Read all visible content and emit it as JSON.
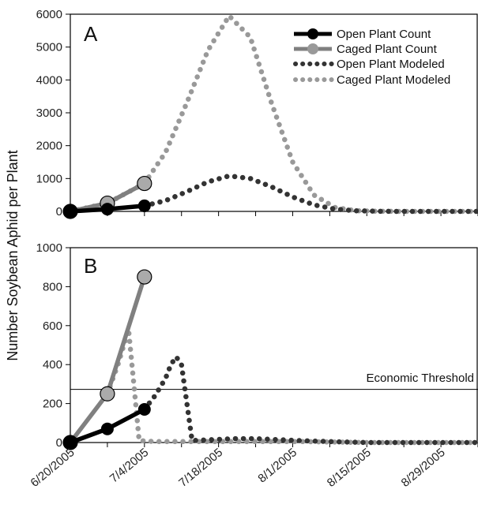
{
  "chart_data": [
    {
      "panel": "A",
      "type": "line",
      "ylabel": "Number Soybean Aphid per Plant",
      "xlabel": "",
      "xlim": [
        "2005-06-20",
        "2005-09-05"
      ],
      "ylim": [
        0,
        6000
      ],
      "yticks": [
        0,
        1000,
        2000,
        3000,
        4000,
        5000,
        6000
      ],
      "legend_position": "top-right",
      "series": [
        {
          "name": "Open Plant Count",
          "style": "solid-marker",
          "color": "#000000",
          "x": [
            "2005-06-20",
            "2005-06-27",
            "2005-07-04"
          ],
          "y": [
            0,
            70,
            170
          ]
        },
        {
          "name": "Caged Plant Count",
          "style": "solid-marker",
          "color": "#808080",
          "x": [
            "2005-06-20",
            "2005-06-27",
            "2005-07-04"
          ],
          "y": [
            0,
            250,
            850
          ]
        },
        {
          "name": "Open Plant Modeled",
          "style": "dotted",
          "color": "#333333",
          "x": [
            "2005-07-04",
            "2005-07-08",
            "2005-07-12",
            "2005-07-16",
            "2005-07-20",
            "2005-07-24",
            "2005-07-28",
            "2005-08-01",
            "2005-08-05",
            "2005-08-09",
            "2005-08-13",
            "2005-08-17",
            "2005-08-21",
            "2005-08-25",
            "2005-08-29",
            "2005-09-02",
            "2005-09-05"
          ],
          "y": [
            170,
            330,
            600,
            900,
            1080,
            1000,
            750,
            440,
            200,
            70,
            20,
            5,
            0,
            0,
            0,
            0,
            0
          ]
        },
        {
          "name": "Caged Plant Modeled",
          "style": "dotted",
          "color": "#999999",
          "x": [
            "2005-06-20",
            "2005-06-27",
            "2005-07-04",
            "2005-07-08",
            "2005-07-12",
            "2005-07-16",
            "2005-07-20",
            "2005-07-24",
            "2005-07-28",
            "2005-08-01",
            "2005-08-05",
            "2005-08-09",
            "2005-08-13",
            "2005-08-17",
            "2005-08-21",
            "2005-08-25",
            "2005-08-29",
            "2005-09-02",
            "2005-09-05"
          ],
          "y": [
            0,
            250,
            850,
            1800,
            3300,
            4900,
            5950,
            5300,
            3300,
            1500,
            500,
            120,
            20,
            5,
            0,
            0,
            0,
            0,
            0
          ]
        }
      ]
    },
    {
      "panel": "B",
      "type": "line",
      "ylabel": "Number Soybean Aphid per Plant",
      "xlabel": "",
      "xlim": [
        "2005-06-20",
        "2005-09-05"
      ],
      "ylim": [
        0,
        1000
      ],
      "yticks": [
        0,
        200,
        400,
        600,
        800,
        1000
      ],
      "xticks": [
        "6/20/2005",
        "7/4/2005",
        "7/18/2005",
        "8/1/2005",
        "8/15/2005",
        "8/29/2005"
      ],
      "threshold": {
        "label": "Economic Threshold",
        "value": 273
      },
      "series": [
        {
          "name": "Open Plant Count",
          "style": "solid-marker",
          "color": "#000000",
          "x": [
            "2005-06-20",
            "2005-06-27",
            "2005-07-04"
          ],
          "y": [
            0,
            70,
            170
          ]
        },
        {
          "name": "Caged Plant Count",
          "style": "solid-marker",
          "color": "#808080",
          "x": [
            "2005-06-20",
            "2005-06-27",
            "2005-07-04"
          ],
          "y": [
            0,
            250,
            850
          ]
        },
        {
          "name": "Open Plant Modeled",
          "style": "dotted",
          "color": "#333333",
          "x": [
            "2005-07-04",
            "2005-07-06",
            "2005-07-08",
            "2005-07-09",
            "2005-07-10",
            "2005-07-11",
            "2005-07-13",
            "2005-07-17",
            "2005-07-21",
            "2005-07-25",
            "2005-07-29",
            "2005-08-02",
            "2005-08-08",
            "2005-08-15",
            "2005-08-22",
            "2005-08-29",
            "2005-09-05"
          ],
          "y": [
            170,
            240,
            330,
            400,
            440,
            400,
            10,
            15,
            20,
            20,
            15,
            10,
            5,
            0,
            0,
            0,
            0
          ]
        },
        {
          "name": "Caged Plant Modeled",
          "style": "dotted",
          "color": "#999999",
          "x": [
            "2005-06-27",
            "2005-06-29",
            "2005-07-01",
            "2005-07-02",
            "2005-07-03",
            "2005-07-06",
            "2005-07-10",
            "2005-07-18",
            "2005-07-26",
            "2005-08-03",
            "2005-08-15",
            "2005-08-29",
            "2005-09-05"
          ],
          "y": [
            250,
            400,
            580,
            300,
            10,
            5,
            5,
            5,
            5,
            5,
            0,
            0,
            0
          ]
        }
      ]
    }
  ]
}
